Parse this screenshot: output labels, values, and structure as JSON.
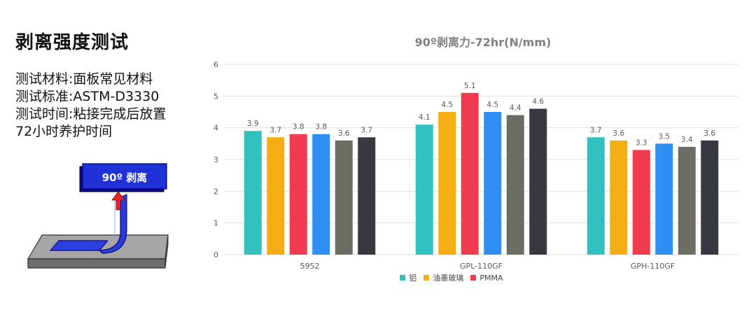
{
  "page": {
    "title": "剥离强度测试",
    "info_lines": [
      "测试材料:面板常见材料",
      "测试标准:ASTM-D3330",
      "测试时间:粘接完成后放置",
      "72小时养护时间"
    ],
    "illustration_label": "90º 剥离"
  },
  "colors": {
    "series": [
      "#31C1C1",
      "#F4AE14",
      "#F03A4E",
      "#2E8EF2",
      "#6D6D65",
      "#383841"
    ],
    "grid": "#E0E0E0",
    "text": "#595959",
    "title": "#808080"
  },
  "chart_data": {
    "type": "bar",
    "title": "90º剥离力-72hr(N/mm)",
    "categories": [
      "5952",
      "GPL-110GF",
      "GPH-110GF"
    ],
    "ylim": [
      0,
      6
    ],
    "yticks": [
      "0",
      "1",
      "2",
      "3",
      "4",
      "5",
      "6"
    ],
    "grid": true,
    "legend_position": "bottom",
    "legend_labels": [
      "铝",
      "油墨玻璃",
      "PMMA"
    ],
    "series": [
      {
        "name": "铝",
        "values": [
          3.9,
          4.1,
          3.7
        ]
      },
      {
        "name": "油墨玻璃",
        "values": [
          3.7,
          4.5,
          3.6
        ]
      },
      {
        "name": "PMMA",
        "values": [
          3.8,
          5.1,
          3.3
        ]
      },
      {
        "values": [
          3.8,
          4.5,
          3.5
        ]
      },
      {
        "values": [
          3.6,
          4.4,
          3.4
        ]
      },
      {
        "values": [
          3.7,
          4.6,
          3.6
        ]
      }
    ]
  }
}
